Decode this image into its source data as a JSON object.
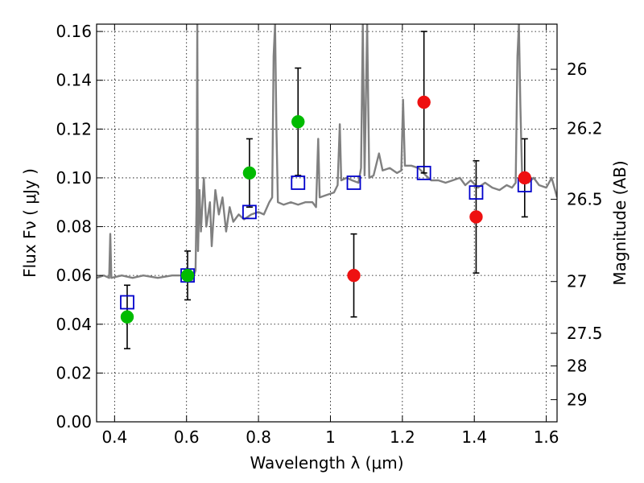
{
  "chart_data": {
    "type": "scatter",
    "xlabel": "Wavelength  λ (μm)",
    "ylabel": "Flux  Fν  ( μJy )",
    "ylabel_right": "Magnitude (AB)",
    "xlim": [
      0.35,
      1.63
    ],
    "ylim": [
      0.0,
      0.163
    ],
    "grid": true,
    "x_ticks": [
      0.4,
      0.6,
      0.8,
      1.0,
      1.2,
      1.4,
      1.6
    ],
    "x_tick_labels": [
      "0.4",
      "0.6",
      "0.8",
      "1",
      "1.2",
      "1.4",
      "1.6"
    ],
    "y_ticks": [
      0.0,
      0.02,
      0.04,
      0.06,
      0.08,
      0.1,
      0.12,
      0.14,
      0.16
    ],
    "y_tick_labels": [
      "0.00",
      "0.02",
      "0.04",
      "0.06",
      "0.08",
      "0.10",
      "0.12",
      "0.14",
      "0.16"
    ],
    "right_ticks": [
      {
        "label": "26",
        "flux": 0.1445
      },
      {
        "label": "26.2",
        "flux": 0.1202
      },
      {
        "label": "26.5",
        "flux": 0.0912
      },
      {
        "label": "27",
        "flux": 0.0575
      },
      {
        "label": "27.5",
        "flux": 0.0363
      },
      {
        "label": "28",
        "flux": 0.0229
      },
      {
        "label": "29",
        "flux": 0.0091
      }
    ],
    "colors": {
      "model": "#808080",
      "green": "#00bb00",
      "red": "#ee1111",
      "squares": "#0000cc",
      "errorbar": "#000000"
    },
    "series": [
      {
        "marker": "square",
        "color": "#0000cc",
        "points": [
          {
            "x": 0.435,
            "y": 0.049
          },
          {
            "x": 0.603,
            "y": 0.06
          },
          {
            "x": 0.775,
            "y": 0.086
          },
          {
            "x": 0.91,
            "y": 0.098
          },
          {
            "x": 1.065,
            "y": 0.098
          },
          {
            "x": 1.26,
            "y": 0.102
          },
          {
            "x": 1.405,
            "y": 0.094
          },
          {
            "x": 1.54,
            "y": 0.097
          }
        ]
      },
      {
        "marker": "circle",
        "color": "#00bb00",
        "points": [
          {
            "x": 0.435,
            "y": 0.043,
            "err": 0.013
          },
          {
            "x": 0.603,
            "y": 0.06,
            "err": 0.01
          },
          {
            "x": 0.775,
            "y": 0.102,
            "err": 0.014
          },
          {
            "x": 0.91,
            "y": 0.123,
            "err": 0.022
          }
        ]
      },
      {
        "marker": "circle",
        "color": "#ee1111",
        "points": [
          {
            "x": 1.065,
            "y": 0.06,
            "err": 0.017
          },
          {
            "x": 1.26,
            "y": 0.131,
            "err": 0.029
          },
          {
            "x": 1.405,
            "y": 0.084,
            "err": 0.023
          },
          {
            "x": 1.54,
            "y": 0.1,
            "err": 0.016
          }
        ]
      },
      {
        "marker": "line",
        "color": "#808080",
        "points": [
          {
            "x": 0.35,
            "y": 0.059
          },
          {
            "x": 0.37,
            "y": 0.06
          },
          {
            "x": 0.385,
            "y": 0.059
          },
          {
            "x": 0.388,
            "y": 0.077
          },
          {
            "x": 0.391,
            "y": 0.059
          },
          {
            "x": 0.42,
            "y": 0.06
          },
          {
            "x": 0.45,
            "y": 0.059
          },
          {
            "x": 0.48,
            "y": 0.06
          },
          {
            "x": 0.52,
            "y": 0.059
          },
          {
            "x": 0.56,
            "y": 0.06
          },
          {
            "x": 0.6,
            "y": 0.06
          },
          {
            "x": 0.615,
            "y": 0.058
          },
          {
            "x": 0.625,
            "y": 0.062
          },
          {
            "x": 0.628,
            "y": 0.09
          },
          {
            "x": 0.63,
            "y": 0.163
          },
          {
            "x": 0.632,
            "y": 0.07
          },
          {
            "x": 0.636,
            "y": 0.095
          },
          {
            "x": 0.64,
            "y": 0.078
          },
          {
            "x": 0.648,
            "y": 0.1
          },
          {
            "x": 0.655,
            "y": 0.08
          },
          {
            "x": 0.665,
            "y": 0.09
          },
          {
            "x": 0.67,
            "y": 0.072
          },
          {
            "x": 0.68,
            "y": 0.095
          },
          {
            "x": 0.69,
            "y": 0.085
          },
          {
            "x": 0.7,
            "y": 0.092
          },
          {
            "x": 0.71,
            "y": 0.078
          },
          {
            "x": 0.72,
            "y": 0.088
          },
          {
            "x": 0.73,
            "y": 0.082
          },
          {
            "x": 0.745,
            "y": 0.085
          },
          {
            "x": 0.76,
            "y": 0.083
          },
          {
            "x": 0.78,
            "y": 0.085
          },
          {
            "x": 0.8,
            "y": 0.086
          },
          {
            "x": 0.815,
            "y": 0.085
          },
          {
            "x": 0.83,
            "y": 0.09
          },
          {
            "x": 0.838,
            "y": 0.092
          },
          {
            "x": 0.842,
            "y": 0.15
          },
          {
            "x": 0.846,
            "y": 0.163
          },
          {
            "x": 0.85,
            "y": 0.12
          },
          {
            "x": 0.854,
            "y": 0.09
          },
          {
            "x": 0.87,
            "y": 0.089
          },
          {
            "x": 0.89,
            "y": 0.09
          },
          {
            "x": 0.91,
            "y": 0.089
          },
          {
            "x": 0.93,
            "y": 0.09
          },
          {
            "x": 0.95,
            "y": 0.09
          },
          {
            "x": 0.96,
            "y": 0.088
          },
          {
            "x": 0.966,
            "y": 0.116
          },
          {
            "x": 0.97,
            "y": 0.092
          },
          {
            "x": 0.99,
            "y": 0.093
          },
          {
            "x": 1.01,
            "y": 0.094
          },
          {
            "x": 1.02,
            "y": 0.097
          },
          {
            "x": 1.026,
            "y": 0.122
          },
          {
            "x": 1.03,
            "y": 0.099
          },
          {
            "x": 1.045,
            "y": 0.1
          },
          {
            "x": 1.06,
            "y": 0.099
          },
          {
            "x": 1.078,
            "y": 0.098
          },
          {
            "x": 1.085,
            "y": 0.104
          },
          {
            "x": 1.09,
            "y": 0.163
          },
          {
            "x": 1.095,
            "y": 0.101
          },
          {
            "x": 1.102,
            "y": 0.163
          },
          {
            "x": 1.108,
            "y": 0.1
          },
          {
            "x": 1.12,
            "y": 0.101
          },
          {
            "x": 1.135,
            "y": 0.11
          },
          {
            "x": 1.145,
            "y": 0.103
          },
          {
            "x": 1.165,
            "y": 0.104
          },
          {
            "x": 1.185,
            "y": 0.102
          },
          {
            "x": 1.197,
            "y": 0.103
          },
          {
            "x": 1.202,
            "y": 0.132
          },
          {
            "x": 1.207,
            "y": 0.105
          },
          {
            "x": 1.225,
            "y": 0.105
          },
          {
            "x": 1.245,
            "y": 0.104
          },
          {
            "x": 1.265,
            "y": 0.101
          },
          {
            "x": 1.28,
            "y": 0.099
          },
          {
            "x": 1.3,
            "y": 0.099
          },
          {
            "x": 1.32,
            "y": 0.098
          },
          {
            "x": 1.34,
            "y": 0.099
          },
          {
            "x": 1.36,
            "y": 0.1
          },
          {
            "x": 1.375,
            "y": 0.097
          },
          {
            "x": 1.39,
            "y": 0.099
          },
          {
            "x": 1.41,
            "y": 0.096
          },
          {
            "x": 1.43,
            "y": 0.098
          },
          {
            "x": 1.45,
            "y": 0.096
          },
          {
            "x": 1.47,
            "y": 0.095
          },
          {
            "x": 1.49,
            "y": 0.097
          },
          {
            "x": 1.505,
            "y": 0.096
          },
          {
            "x": 1.515,
            "y": 0.098
          },
          {
            "x": 1.52,
            "y": 0.15
          },
          {
            "x": 1.524,
            "y": 0.163
          },
          {
            "x": 1.528,
            "y": 0.13
          },
          {
            "x": 1.533,
            "y": 0.099
          },
          {
            "x": 1.55,
            "y": 0.098
          },
          {
            "x": 1.565,
            "y": 0.1
          },
          {
            "x": 1.58,
            "y": 0.097
          },
          {
            "x": 1.6,
            "y": 0.096
          },
          {
            "x": 1.615,
            "y": 0.1
          },
          {
            "x": 1.63,
            "y": 0.092
          }
        ]
      }
    ]
  }
}
